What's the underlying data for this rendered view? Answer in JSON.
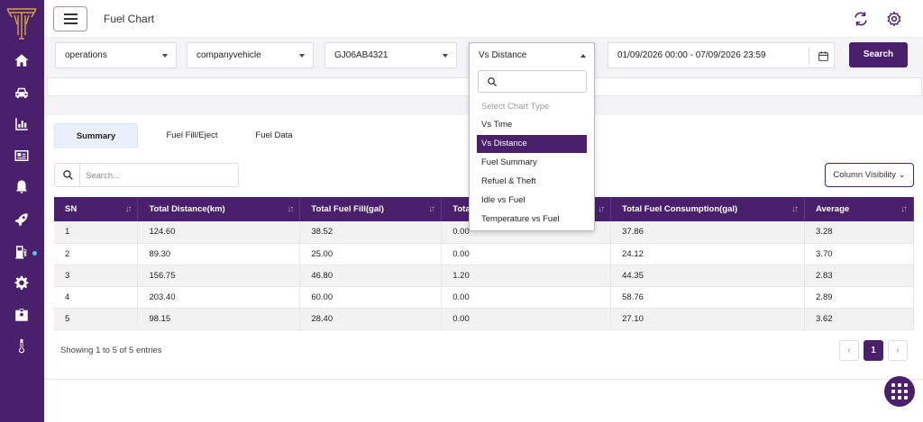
{
  "header": {
    "title": "Fuel Chart"
  },
  "filters": {
    "operation": "operations",
    "vehicle_type": "companyvehicle",
    "vehicle": "GJ06AB4321",
    "chart_type": "Vs Distance",
    "date_range": "01/09/2026 00:00 - 07/09/2026 23:59",
    "search_label": "Search"
  },
  "chart_type_dropdown": {
    "search_value": "",
    "options": [
      "Select Chart Type",
      "Vs Time",
      "Vs Distance",
      "Fuel Summary",
      "Refuel & Theft",
      "Idle vs Fuel",
      "Temperature vs Fuel"
    ],
    "selected": "Vs Distance"
  },
  "tabs": [
    "Summary",
    "Fuel Fill/Eject",
    "Fuel Data"
  ],
  "active_tab": "Summary",
  "table_controls": {
    "search_placeholder": "Search...",
    "column_visibility": "Column Visibility"
  },
  "table": {
    "headers": [
      "SN",
      "Total Distance(km)",
      "Total Fuel Fill(gal)",
      "Tota",
      "Total Fuel Consumption(gal)",
      "Average"
    ],
    "rows": [
      [
        "1",
        "124.60",
        "38.52",
        "0.00",
        "37.86",
        "3.28"
      ],
      [
        "2",
        "89.30",
        "25.00",
        "0.00",
        "24.12",
        "3.70"
      ],
      [
        "3",
        "156.75",
        "46.80",
        "1.20",
        "44.35",
        "2.83"
      ],
      [
        "4",
        "203.40",
        "60.00",
        "0.00",
        "58.76",
        "2.89"
      ],
      [
        "5",
        "98.15",
        "28.40",
        "0.00",
        "27.10",
        "3.62"
      ]
    ]
  },
  "pagination": {
    "info": "Showing 1 to 5 of 5 entries",
    "prev": "‹",
    "page": "1",
    "next": "›"
  },
  "sidebar_icons": [
    "home-icon",
    "car-icon",
    "bar-chart-icon",
    "id-card-icon",
    "bell-icon",
    "rocket-icon",
    "fuel-pump-icon",
    "gear-icon",
    "badge-icon",
    "thermometer-icon"
  ],
  "colors": {
    "brand": "#4a1f6b",
    "sidebar": "#4a1f6b",
    "active_tab_bg": "#e9f0fb",
    "indicator": "#4fc3f7"
  }
}
